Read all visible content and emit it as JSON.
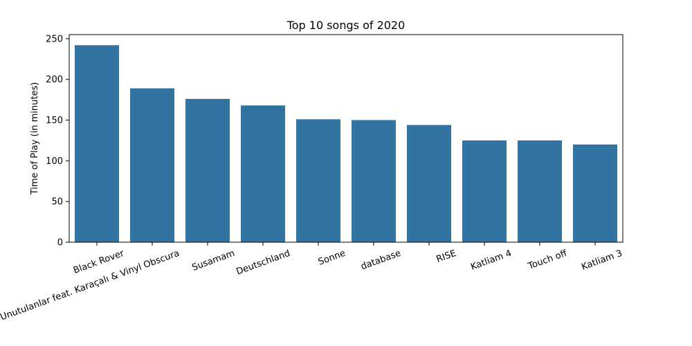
{
  "chart_data": {
    "type": "bar",
    "title": "Top 10 songs of 2020",
    "xlabel": "",
    "ylabel": "Time of Play (in minutes)",
    "categories": [
      "Black Rover",
      "Kayıp Mekanlar V: Unutulanlar feat. Karaçalı & Vinyl Obscura",
      "Susamam",
      "Deutschland",
      "Sonne",
      "database",
      "RISE",
      "Katliam 4",
      "Touch off",
      "Katliam 3"
    ],
    "values": [
      242,
      189,
      176,
      168,
      151,
      150,
      144,
      125,
      125,
      120
    ],
    "ylim": [
      0,
      255
    ],
    "yticks": [
      0,
      50,
      100,
      150,
      200,
      250
    ],
    "bar_color": "#3274a1",
    "grid": false,
    "xtick_rotation": 20
  }
}
